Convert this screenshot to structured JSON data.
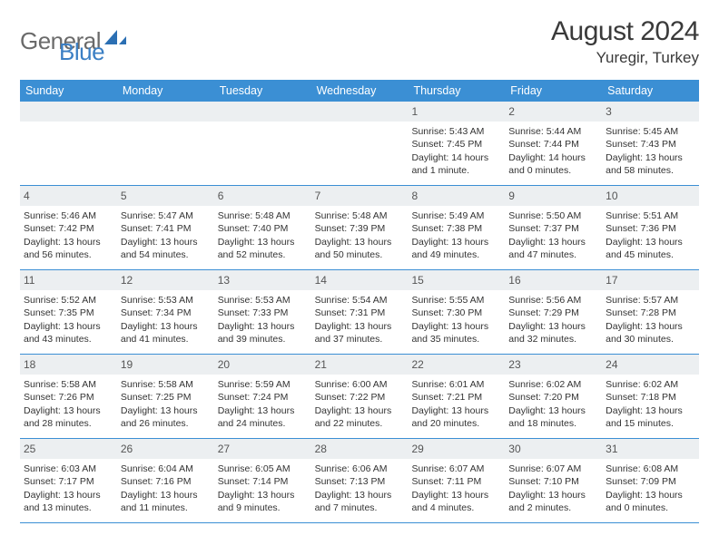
{
  "logo": {
    "text_general": "General",
    "text_blue": "Blue"
  },
  "title": {
    "month": "August 2024",
    "location": "Yuregir, Turkey"
  },
  "colors": {
    "header_bg": "#3b8fd4",
    "header_text": "#ffffff",
    "daynum_bg": "#eceff1",
    "border": "#3b8fd4",
    "body_text": "#333333",
    "logo_gray": "#6a6a6a",
    "logo_blue": "#3b7fc4"
  },
  "font": {
    "family": "Arial",
    "day_header_size": 12.5,
    "cell_size": 10.5,
    "title_size": 30
  },
  "weekdays": [
    "Sunday",
    "Monday",
    "Tuesday",
    "Wednesday",
    "Thursday",
    "Friday",
    "Saturday"
  ],
  "leading_blanks": 4,
  "days": [
    {
      "n": 1,
      "sunrise": "5:43 AM",
      "sunset": "7:45 PM",
      "daylight": "14 hours and 1 minute."
    },
    {
      "n": 2,
      "sunrise": "5:44 AM",
      "sunset": "7:44 PM",
      "daylight": "14 hours and 0 minutes."
    },
    {
      "n": 3,
      "sunrise": "5:45 AM",
      "sunset": "7:43 PM",
      "daylight": "13 hours and 58 minutes."
    },
    {
      "n": 4,
      "sunrise": "5:46 AM",
      "sunset": "7:42 PM",
      "daylight": "13 hours and 56 minutes."
    },
    {
      "n": 5,
      "sunrise": "5:47 AM",
      "sunset": "7:41 PM",
      "daylight": "13 hours and 54 minutes."
    },
    {
      "n": 6,
      "sunrise": "5:48 AM",
      "sunset": "7:40 PM",
      "daylight": "13 hours and 52 minutes."
    },
    {
      "n": 7,
      "sunrise": "5:48 AM",
      "sunset": "7:39 PM",
      "daylight": "13 hours and 50 minutes."
    },
    {
      "n": 8,
      "sunrise": "5:49 AM",
      "sunset": "7:38 PM",
      "daylight": "13 hours and 49 minutes."
    },
    {
      "n": 9,
      "sunrise": "5:50 AM",
      "sunset": "7:37 PM",
      "daylight": "13 hours and 47 minutes."
    },
    {
      "n": 10,
      "sunrise": "5:51 AM",
      "sunset": "7:36 PM",
      "daylight": "13 hours and 45 minutes."
    },
    {
      "n": 11,
      "sunrise": "5:52 AM",
      "sunset": "7:35 PM",
      "daylight": "13 hours and 43 minutes."
    },
    {
      "n": 12,
      "sunrise": "5:53 AM",
      "sunset": "7:34 PM",
      "daylight": "13 hours and 41 minutes."
    },
    {
      "n": 13,
      "sunrise": "5:53 AM",
      "sunset": "7:33 PM",
      "daylight": "13 hours and 39 minutes."
    },
    {
      "n": 14,
      "sunrise": "5:54 AM",
      "sunset": "7:31 PM",
      "daylight": "13 hours and 37 minutes."
    },
    {
      "n": 15,
      "sunrise": "5:55 AM",
      "sunset": "7:30 PM",
      "daylight": "13 hours and 35 minutes."
    },
    {
      "n": 16,
      "sunrise": "5:56 AM",
      "sunset": "7:29 PM",
      "daylight": "13 hours and 32 minutes."
    },
    {
      "n": 17,
      "sunrise": "5:57 AM",
      "sunset": "7:28 PM",
      "daylight": "13 hours and 30 minutes."
    },
    {
      "n": 18,
      "sunrise": "5:58 AM",
      "sunset": "7:26 PM",
      "daylight": "13 hours and 28 minutes."
    },
    {
      "n": 19,
      "sunrise": "5:58 AM",
      "sunset": "7:25 PM",
      "daylight": "13 hours and 26 minutes."
    },
    {
      "n": 20,
      "sunrise": "5:59 AM",
      "sunset": "7:24 PM",
      "daylight": "13 hours and 24 minutes."
    },
    {
      "n": 21,
      "sunrise": "6:00 AM",
      "sunset": "7:22 PM",
      "daylight": "13 hours and 22 minutes."
    },
    {
      "n": 22,
      "sunrise": "6:01 AM",
      "sunset": "7:21 PM",
      "daylight": "13 hours and 20 minutes."
    },
    {
      "n": 23,
      "sunrise": "6:02 AM",
      "sunset": "7:20 PM",
      "daylight": "13 hours and 18 minutes."
    },
    {
      "n": 24,
      "sunrise": "6:02 AM",
      "sunset": "7:18 PM",
      "daylight": "13 hours and 15 minutes."
    },
    {
      "n": 25,
      "sunrise": "6:03 AM",
      "sunset": "7:17 PM",
      "daylight": "13 hours and 13 minutes."
    },
    {
      "n": 26,
      "sunrise": "6:04 AM",
      "sunset": "7:16 PM",
      "daylight": "13 hours and 11 minutes."
    },
    {
      "n": 27,
      "sunrise": "6:05 AM",
      "sunset": "7:14 PM",
      "daylight": "13 hours and 9 minutes."
    },
    {
      "n": 28,
      "sunrise": "6:06 AM",
      "sunset": "7:13 PM",
      "daylight": "13 hours and 7 minutes."
    },
    {
      "n": 29,
      "sunrise": "6:07 AM",
      "sunset": "7:11 PM",
      "daylight": "13 hours and 4 minutes."
    },
    {
      "n": 30,
      "sunrise": "6:07 AM",
      "sunset": "7:10 PM",
      "daylight": "13 hours and 2 minutes."
    },
    {
      "n": 31,
      "sunrise": "6:08 AM",
      "sunset": "7:09 PM",
      "daylight": "13 hours and 0 minutes."
    }
  ]
}
